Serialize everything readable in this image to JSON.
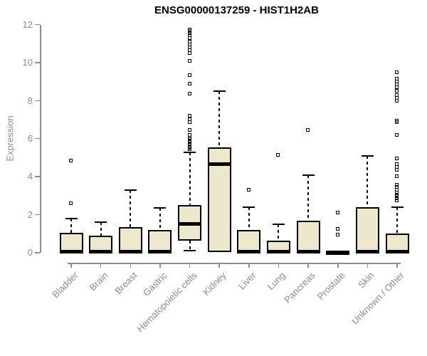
{
  "title": "ENSG00000137259 - HIST1H2AB",
  "chart_data": {
    "type": "boxplot",
    "title": "ENSG00000137259 - HIST1H2AB",
    "xlabel": "",
    "ylabel": "Expression",
    "ylim": [
      0,
      12
    ],
    "yticks": [
      0,
      2,
      4,
      6,
      8,
      10,
      12
    ],
    "grid": false,
    "legend": false,
    "colors": {
      "box_fill": "#ede8cd",
      "box_border": "#000000",
      "median": "#000000",
      "axis": "#8c8c8c",
      "tick_label": "#8c8c8c",
      "title": "#000000"
    },
    "categories": [
      "Bladder",
      "Brain",
      "Breast",
      "Gastric",
      "Hematopoietic cells",
      "Kidney",
      "Liver",
      "Lung",
      "Pancreas",
      "Prostate",
      "Skin",
      "Unknown / Other"
    ],
    "series": [
      {
        "name": "Bladder",
        "min": 0,
        "q1": 0,
        "median": 0.05,
        "q3": 1.05,
        "max": 1.8,
        "outliers": [
          2.6,
          4.85
        ]
      },
      {
        "name": "Brain",
        "min": 0,
        "q1": 0,
        "median": 0.05,
        "q3": 0.9,
        "max": 1.6,
        "outliers": []
      },
      {
        "name": "Breast",
        "min": 0,
        "q1": 0,
        "median": 0.05,
        "q3": 1.35,
        "max": 3.3,
        "outliers": []
      },
      {
        "name": "Gastric",
        "min": 0,
        "q1": 0,
        "median": 0.05,
        "q3": 1.2,
        "max": 2.35,
        "outliers": []
      },
      {
        "name": "Hematopoietic cells",
        "min": 0.1,
        "q1": 0.63,
        "median": 1.5,
        "q3": 2.5,
        "max": 5.3,
        "outliers": [
          5.45,
          5.5,
          5.55,
          5.6,
          5.65,
          5.7,
          5.75,
          5.8,
          5.85,
          5.95,
          6.05,
          6.2,
          6.45,
          6.85,
          7.0,
          7.2,
          8.35,
          8.9,
          9.35,
          10.1,
          10.5,
          10.65,
          10.8,
          10.95,
          11.1,
          11.3,
          11.45,
          11.55,
          11.65,
          11.75
        ]
      },
      {
        "name": "Kidney",
        "min": 0.05,
        "q1": 0.05,
        "median": 4.65,
        "q3": 5.55,
        "max": 8.5,
        "outliers": []
      },
      {
        "name": "Liver",
        "min": 0,
        "q1": 0,
        "median": 0.05,
        "q3": 1.2,
        "max": 2.4,
        "outliers": [
          3.3
        ]
      },
      {
        "name": "Lung",
        "min": 0,
        "q1": 0,
        "median": 0.05,
        "q3": 0.65,
        "max": 1.5,
        "outliers": [
          5.15
        ]
      },
      {
        "name": "Pancreas",
        "min": 0,
        "q1": 0,
        "median": 0.05,
        "q3": 1.7,
        "max": 4.1,
        "outliers": [
          6.45
        ]
      },
      {
        "name": "Prostate",
        "min": 0,
        "q1": 0,
        "median": 0.02,
        "q3": 0.05,
        "max": 0.05,
        "outliers": [
          0.95,
          1.25,
          2.1
        ]
      },
      {
        "name": "Skin",
        "min": 0,
        "q1": 0,
        "median": 0.05,
        "q3": 2.4,
        "max": 5.1,
        "outliers": []
      },
      {
        "name": "Unknown / Other",
        "min": 0,
        "q1": 0,
        "median": 0.05,
        "q3": 1.0,
        "max": 2.4,
        "outliers": [
          2.75,
          2.85,
          2.95,
          3.05,
          3.15,
          3.3,
          3.45,
          3.55,
          4.0,
          4.35,
          4.5,
          4.65,
          4.95,
          6.2,
          6.85,
          6.95,
          8.0,
          8.15,
          8.3,
          8.5,
          8.7,
          8.85,
          9.0,
          9.15,
          9.5
        ]
      }
    ]
  }
}
